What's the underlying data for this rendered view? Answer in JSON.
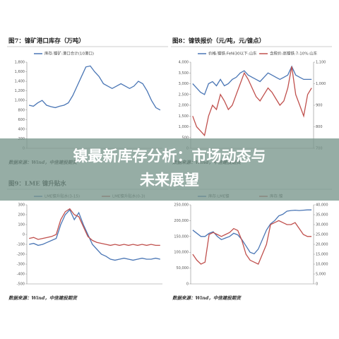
{
  "chart_data": [
    {
      "type": "line",
      "title": "图7：镍矿港口库存（万吨）",
      "source": "数据来源：Wind，中信建投期货",
      "ylim": [
        0,
        1800
      ],
      "yticks": [
        0,
        {
          "value": 200,
          "label": "200"
        },
        {
          "value": 400,
          "label": "400"
        },
        {
          "value": 600,
          "label": "600"
        },
        {
          "value": 800,
          "label": "800"
        },
        {
          "value": 1000,
          "label": "1,000"
        },
        {
          "value": 1200,
          "label": "1,200"
        },
        {
          "value": 1400,
          "label": "1,400"
        },
        {
          "value": 1600,
          "label": "1,600"
        },
        {
          "value": 1800,
          "label": "1,800"
        }
      ],
      "series": [
        {
          "name": "库存:镍矿:港口合计(10港口)",
          "color": "#4a76b5",
          "values": [
            900,
            880,
            950,
            1000,
            900,
            870,
            850,
            880,
            900,
            950,
            1100,
            1300,
            1500,
            1700,
            1720,
            1600,
            1500,
            1350,
            1300,
            1250,
            1300,
            1350,
            1300,
            1250,
            1300,
            1400,
            1350,
            1200,
            1000,
            850,
            800
          ]
        }
      ]
    },
    {
      "type": "line",
      "title": "图8：镍铁报价（元/吨，元/镍点）",
      "source": "数据来源：Wind，中信建投期货",
      "ylim": [
        0,
        4000
      ],
      "yticks": [
        0,
        500,
        {
          "value": 1000,
          "label": "1,000"
        },
        {
          "value": 1500,
          "label": "1,500"
        },
        {
          "value": 2000,
          "label": "2,000"
        },
        {
          "value": 2500,
          "label": "2,500"
        },
        {
          "value": 3000,
          "label": "3,000"
        },
        {
          "value": 3500,
          "label": "3,500"
        },
        {
          "value": 4000,
          "label": "4,000"
        }
      ],
      "y2lim": [
        700,
        1100
      ],
      "y2ticks": [
        700,
        800,
        900,
        {
          "value": 1000,
          "label": "1,000"
        },
        {
          "value": 1100,
          "label": "1,100"
        }
      ],
      "series": [
        {
          "name": "价格:镍铁:FeNi30以下:山东",
          "color": "#4a76b5",
          "values": [
            3000,
            2800,
            2600,
            2500,
            3000,
            3100,
            2900,
            3200,
            2900,
            3000,
            3200,
            3300,
            3500,
            3600,
            3400,
            3300,
            3200,
            3100,
            3300,
            3500,
            3400,
            3300,
            3200,
            3300,
            3400,
            3800,
            3400,
            3300,
            3200,
            3200,
            3200
          ]
        },
        {
          "name": "含税价:高镍铁:7-10%:山东",
          "color": "#c0504d",
          "axis": "y2",
          "values": [
            850,
            800,
            780,
            760,
            850,
            900,
            880,
            950,
            920,
            880,
            900,
            950,
            1000,
            1050,
            1020,
            980,
            940,
            920,
            950,
            980,
            960,
            930,
            900,
            920,
            980,
            1080,
            950,
            900,
            850,
            950,
            980
          ]
        }
      ]
    },
    {
      "type": "line",
      "title": "图9：LME 镍升贴水",
      "source": "数据来源：Wind，中信建投期货",
      "ylim": [
        -500,
        300
      ],
      "yticks": [
        -500,
        -400,
        -300,
        -200,
        -100,
        0,
        100,
        200,
        300
      ],
      "series": [
        {
          "name": "LME镍升贴水(3-15)",
          "color": "#4a76b5",
          "values": [
            -100,
            -90,
            -110,
            -100,
            -80,
            -60,
            -40,
            100,
            200,
            250,
            150,
            220,
            100,
            0,
            -100,
            -150,
            -200,
            -220,
            -250,
            -260,
            -250,
            -240,
            -250,
            -260,
            -250,
            -240,
            -250,
            -250,
            -240,
            -250
          ]
        },
        {
          "name": "LME镍升贴水(0-3)",
          "color": "#c0504d",
          "values": [
            -40,
            -30,
            -50,
            -40,
            -30,
            -20,
            0,
            150,
            230,
            260,
            200,
            180,
            80,
            -20,
            -60,
            -80,
            -90,
            -100,
            -110,
            -100,
            -110,
            -100,
            -110,
            -100,
            -110,
            -100,
            -110,
            -100,
            -110,
            -110
          ]
        }
      ]
    },
    {
      "type": "line",
      "source": "数据来源：Wind，中信建投期货",
      "ylim": [
        0,
        250000
      ],
      "yticks": [
        0,
        {
          "value": 50000,
          "label": "50,000"
        },
        {
          "value": 100000,
          "label": "100,000"
        },
        {
          "value": 150000,
          "label": "150,000"
        },
        {
          "value": 200000,
          "label": "200,000"
        },
        {
          "value": 250000,
          "label": "250,000"
        }
      ],
      "y2lim": [
        0,
        40000
      ],
      "y2ticks": [
        0,
        {
          "value": 5000,
          "label": "5,000"
        },
        {
          "value": 10000,
          "label": "10,000"
        },
        {
          "value": 15000,
          "label": "15,000"
        },
        {
          "value": 20000,
          "label": "20,000"
        },
        {
          "value": 25000,
          "label": "25,000"
        },
        {
          "value": 30000,
          "label": "30,000"
        },
        {
          "value": 35000,
          "label": "35,000"
        },
        {
          "value": 40000,
          "label": "40,000"
        }
      ],
      "series": [
        {
          "name": "库存:LME镍",
          "color": "#4a76b5",
          "values": [
            170000,
            160000,
            150000,
            150000,
            160000,
            165000,
            150000,
            140000,
            145000,
            150000,
            160000,
            155000,
            140000,
            120000,
            100000,
            95000,
            110000,
            140000,
            170000,
            190000,
            200000,
            215000,
            220000,
            230000,
            232000,
            233000,
            232000,
            233000,
            234000,
            234000
          ]
        },
        {
          "name": "库存:镍",
          "color": "#c0504d",
          "axis": "y2",
          "values": [
            15000,
            12000,
            10000,
            11000,
            25000,
            26000,
            25000,
            24000,
            25000,
            26000,
            28000,
            27000,
            22000,
            15000,
            12000,
            11000,
            10000,
            15000,
            20000,
            30000,
            31000,
            32000,
            31000,
            30000,
            30000,
            31000,
            28000,
            25000,
            24000,
            24000
          ]
        }
      ]
    }
  ],
  "banner": [
    "镍最新库存分析：市场动态与",
    "未来展望"
  ]
}
